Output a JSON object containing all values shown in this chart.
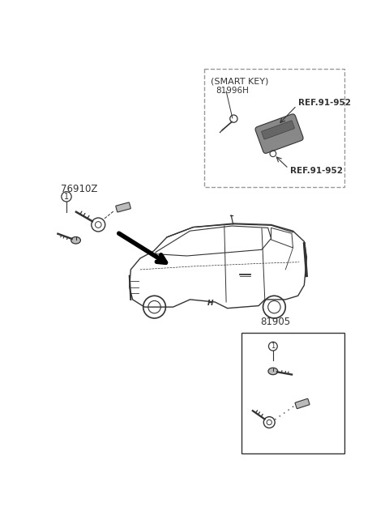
{
  "bg_color": "#ffffff",
  "smart_key_label": "(SMART KEY)",
  "smart_key_part": "81996H",
  "ref_label1": "REF.91-952",
  "ref_label2": "REF.91-952",
  "cylinder_label": "76910Z",
  "bottom_box_label": "81905",
  "dgray": "#333333",
  "mgray": "#888888",
  "lgray": "#bbbbbb"
}
